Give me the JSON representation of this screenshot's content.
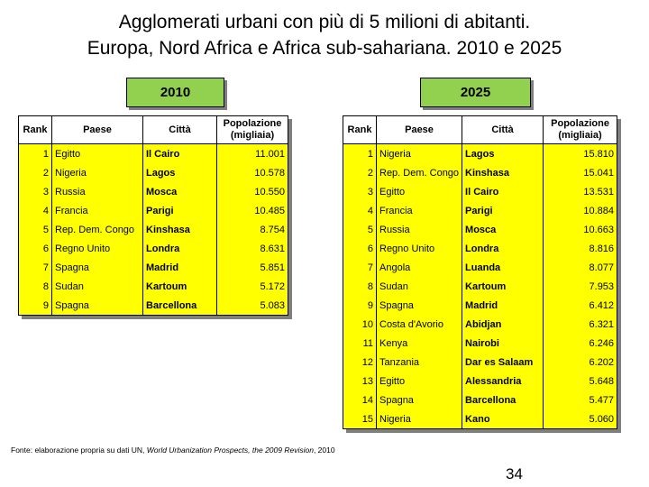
{
  "title_line1": "Agglomerati urbani con più di 5 milioni di abitanti.",
  "title_line2": "Europa, Nord Africa e Africa sub-sahariana. 2010 e 2025",
  "badges": {
    "y2010": "2010",
    "y2025": "2025"
  },
  "headers": {
    "rank": "Rank",
    "country": "Paese",
    "city": "Città",
    "pop_line1": "Popolazione",
    "pop_line2": "(migliaia)"
  },
  "colors": {
    "row_fill": "#ffff00",
    "badge_fill": "#92d050"
  },
  "table2010": [
    {
      "rank": "1",
      "country": "Egitto",
      "city": "Il Cairo",
      "pop": "11.001"
    },
    {
      "rank": "2",
      "country": "Nigeria",
      "city": "Lagos",
      "pop": "10.578"
    },
    {
      "rank": "3",
      "country": "Russia",
      "city": "Mosca",
      "pop": "10.550"
    },
    {
      "rank": "4",
      "country": "Francia",
      "city": "Parigi",
      "pop": "10.485"
    },
    {
      "rank": "5",
      "country": "Rep. Dem. Congo",
      "city": "Kinshasa",
      "pop": "8.754"
    },
    {
      "rank": "6",
      "country": "Regno Unito",
      "city": "Londra",
      "pop": "8.631"
    },
    {
      "rank": "7",
      "country": "Spagna",
      "city": "Madrid",
      "pop": "5.851"
    },
    {
      "rank": "8",
      "country": "Sudan",
      "city": "Kartoum",
      "pop": "5.172"
    },
    {
      "rank": "9",
      "country": "Spagna",
      "city": "Barcellona",
      "pop": "5.083"
    }
  ],
  "table2025": [
    {
      "rank": "1",
      "country": "Nigeria",
      "city": "Lagos",
      "pop": "15.810"
    },
    {
      "rank": "2",
      "country": "Rep. Dem. Congo",
      "city": "Kinshasa",
      "pop": "15.041"
    },
    {
      "rank": "3",
      "country": "Egitto",
      "city": "Il Cairo",
      "pop": "13.531"
    },
    {
      "rank": "4",
      "country": "Francia",
      "city": "Parigi",
      "pop": "10.884"
    },
    {
      "rank": "5",
      "country": "Russia",
      "city": "Mosca",
      "pop": "10.663"
    },
    {
      "rank": "6",
      "country": "Regno Unito",
      "city": "Londra",
      "pop": "8.816"
    },
    {
      "rank": "7",
      "country": "Angola",
      "city": "Luanda",
      "pop": "8.077"
    },
    {
      "rank": "8",
      "country": "Sudan",
      "city": "Kartoum",
      "pop": "7.953"
    },
    {
      "rank": "9",
      "country": "Spagna",
      "city": "Madrid",
      "pop": "6.412"
    },
    {
      "rank": "10",
      "country": "Costa d'Avorio",
      "city": "Abidjan",
      "pop": "6.321"
    },
    {
      "rank": "11",
      "country": "Kenya",
      "city": "Nairobi",
      "pop": "6.246"
    },
    {
      "rank": "12",
      "country": "Tanzania",
      "city": "Dar es Salaam",
      "pop": "6.202"
    },
    {
      "rank": "13",
      "country": "Egitto",
      "city": "Alessandria",
      "pop": "5.648"
    },
    {
      "rank": "14",
      "country": "Spagna",
      "city": "Barcellona",
      "pop": "5.477"
    },
    {
      "rank": "15",
      "country": "Nigeria",
      "city": "Kano",
      "pop": "5.060"
    }
  ],
  "footer": {
    "prefix": "Fonte: elaborazione propria su dati UN, ",
    "italic": "World Urbanization Prospects, the 2009 Revision",
    "suffix": ", 2010"
  },
  "page_number": "34"
}
